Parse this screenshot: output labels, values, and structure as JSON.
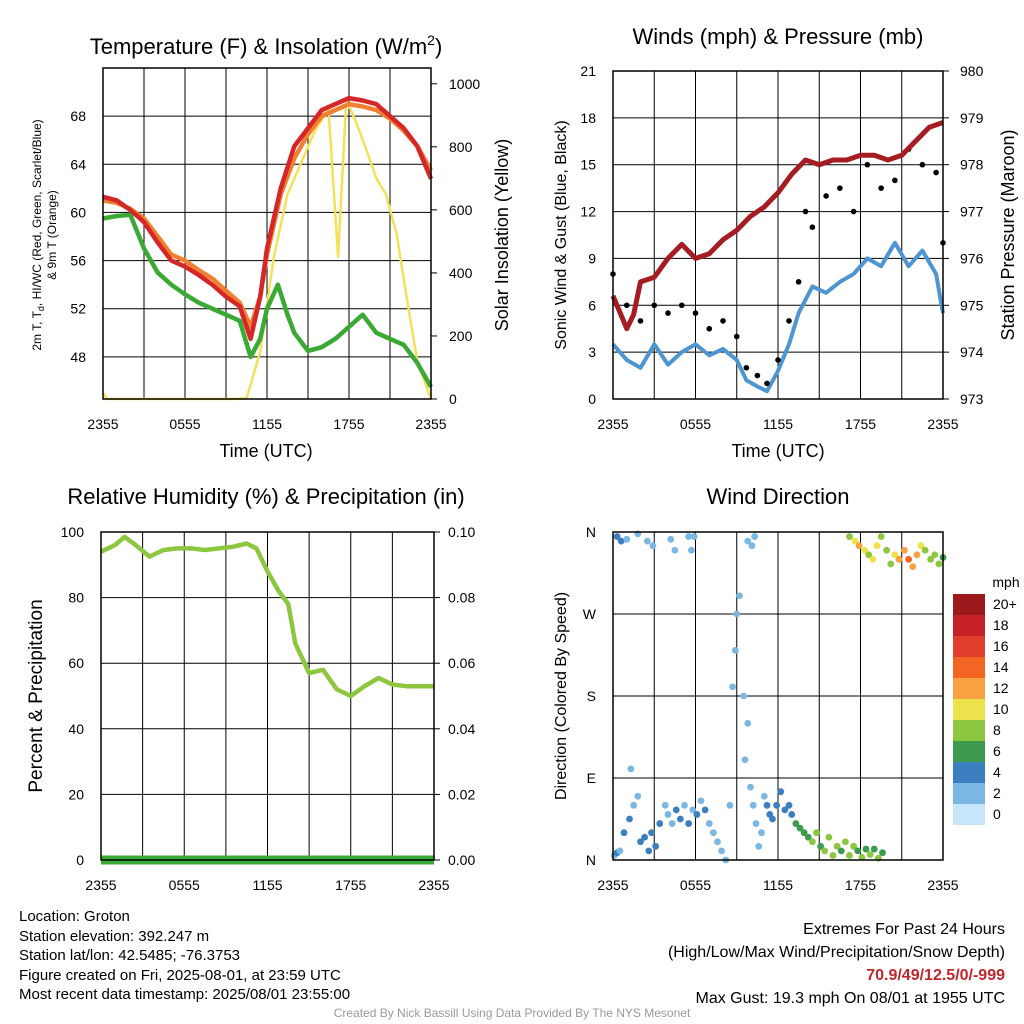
{
  "chart_data": [
    {
      "type": "line",
      "title": "Temperature (F) & Insolation (W/m²)",
      "title_main": "Temperature (F) & Insolation (W/m",
      "title_sup": "2",
      "title_end": ")",
      "xlabel": "Time (UTC)",
      "ylabel_left_1": "2m T, T",
      "ylabel_left_sub": "d",
      "ylabel_left_2": ", HI/WC (Red, Green, Scarlet/Blue)",
      "ylabel_left_3": "& 9m T (Orange)",
      "ylabel_right": "Solar Insolation (Yellow)",
      "xticks": [
        "2355",
        "0555",
        "1155",
        "1755",
        "2355"
      ],
      "xlim": [
        0,
        24
      ],
      "ylim": [
        44.5,
        72
      ],
      "yticks": [
        48,
        52,
        56,
        60,
        64,
        68
      ],
      "y2lim": [
        0,
        1050
      ],
      "y2ticks": [
        0,
        200,
        400,
        600,
        800,
        1000
      ],
      "series": [
        {
          "name": "2m T",
          "color": "#d62728",
          "x": [
            0,
            1,
            2,
            3,
            4,
            5,
            6,
            7,
            8,
            9,
            10,
            10.8,
            11.5,
            12,
            13,
            14,
            15,
            16,
            17,
            18,
            19,
            20,
            21,
            22,
            23,
            24
          ],
          "values": [
            61.3,
            61,
            60.2,
            59.2,
            57.5,
            56,
            55.5,
            54.8,
            54,
            53,
            52.2,
            49.5,
            53,
            57,
            62,
            65.5,
            67,
            68.5,
            69,
            69.5,
            69.3,
            69,
            68,
            67,
            65.5,
            62.8
          ]
        },
        {
          "name": "9m T",
          "color": "#f07f30",
          "x": [
            0,
            1,
            2,
            3,
            4,
            5,
            6,
            7,
            8,
            9,
            10,
            10.8,
            11.5,
            12,
            13,
            14,
            15,
            16,
            17,
            18,
            19,
            20,
            21,
            22,
            23,
            24
          ],
          "values": [
            61,
            60.8,
            60.3,
            59.5,
            58,
            56.5,
            56,
            55.2,
            54.5,
            53.5,
            52.5,
            50.5,
            53,
            56.5,
            61.5,
            64.5,
            66.5,
            68,
            68.5,
            69,
            68.8,
            68.5,
            67.8,
            66.8,
            65.5,
            63.5
          ]
        },
        {
          "name": "Td",
          "color": "#3aaa35",
          "x": [
            0,
            1,
            2,
            3,
            4,
            5,
            6,
            7,
            8,
            9,
            10,
            10.8,
            11.5,
            12,
            12.8,
            13.5,
            14,
            15,
            16,
            17,
            18,
            19,
            20,
            21,
            22,
            23,
            24
          ],
          "values": [
            59.5,
            59.7,
            59.8,
            57,
            55,
            54,
            53.2,
            52.5,
            52,
            51.5,
            51,
            48,
            49.5,
            52,
            54,
            51.5,
            50,
            48.5,
            48.8,
            49.5,
            50.5,
            51.5,
            50,
            49.5,
            49,
            47.5,
            45.5
          ]
        },
        {
          "name": "Solar Insolation",
          "color": "#f5e05a",
          "axis": "right",
          "x": [
            0,
            0.3,
            9.5,
            10.5,
            11.5,
            12.5,
            13.5,
            14.5,
            15.5,
            16.5,
            17.2,
            17.8,
            18.5,
            19.2,
            20,
            20.7,
            21.5,
            22.3,
            23,
            24
          ],
          "values": [
            20,
            0,
            0,
            2,
            150,
            450,
            650,
            750,
            850,
            920,
            450,
            950,
            880,
            800,
            700,
            650,
            520,
            300,
            120,
            0
          ]
        }
      ]
    },
    {
      "type": "line",
      "title": "Winds (mph) & Pressure (mb)",
      "xlabel": "Time (UTC)",
      "ylabel": "Sonic Wind & Gust (Blue, Black)",
      "ylabel_right": "Station Pressure (Maroon)",
      "xticks": [
        "2355",
        "0555",
        "1155",
        "1755",
        "2355"
      ],
      "xlim": [
        0,
        24
      ],
      "ylim": [
        0,
        21
      ],
      "yticks": [
        0,
        3,
        6,
        9,
        12,
        15,
        18,
        21
      ],
      "y2lim": [
        973,
        980
      ],
      "y2ticks": [
        973,
        974,
        975,
        976,
        977,
        978,
        979,
        980
      ],
      "series": [
        {
          "name": "Sonic Wind",
          "color": "#4e95d1",
          "x": [
            0,
            1,
            2,
            3,
            4,
            5,
            6,
            7,
            8,
            9,
            9.7,
            10.5,
            11.2,
            12,
            12.8,
            13.5,
            14.5,
            15.5,
            16.5,
            17.5,
            18.5,
            19.5,
            20.5,
            21.5,
            22.5,
            23.5,
            24
          ],
          "values": [
            3.5,
            2.5,
            2,
            3.5,
            2.2,
            3,
            3.5,
            2.8,
            3.2,
            2.5,
            1.2,
            0.8,
            0.5,
            1.8,
            3.5,
            5.5,
            7.2,
            6.8,
            7.5,
            8,
            9,
            8.5,
            10,
            8.5,
            9.5,
            8,
            5.5
          ]
        },
        {
          "name": "Gust",
          "color": "#000000",
          "type": "scatter",
          "x": [
            0,
            1,
            2,
            3,
            4,
            5,
            6,
            7,
            8,
            9,
            9.7,
            10.5,
            11.2,
            12,
            12.8,
            13.5,
            14,
            14.5,
            15.5,
            16.5,
            17.5,
            18.5,
            19.5,
            20.5,
            21.5,
            22.5,
            23.5,
            24
          ],
          "values": [
            8,
            6,
            5,
            6,
            5.5,
            6,
            5.5,
            4.5,
            5,
            4,
            2,
            1.5,
            1,
            2.5,
            5,
            7.5,
            12,
            11,
            13,
            13.5,
            12,
            15,
            13.5,
            14,
            16,
            15,
            14.5,
            10
          ]
        },
        {
          "name": "Station Pressure",
          "color": "#a51d22",
          "axis": "right",
          "x": [
            0,
            1,
            1.5,
            2,
            3,
            4,
            5,
            6,
            7,
            8,
            9,
            10,
            11,
            12,
            13,
            14,
            15,
            16,
            17,
            18,
            19,
            20,
            21,
            22,
            23,
            24
          ],
          "values": [
            975.2,
            974.5,
            974.8,
            975.5,
            975.6,
            976,
            976.3,
            976,
            976.1,
            976.4,
            976.6,
            976.9,
            977.1,
            977.4,
            977.8,
            978.1,
            978,
            978.1,
            978.1,
            978.2,
            978.2,
            978.1,
            978.2,
            978.5,
            978.8,
            978.9
          ]
        }
      ]
    },
    {
      "type": "line",
      "title": "Relative Humidity (%) & Precipitation (in)",
      "ylabel": "Percent & Precipitation",
      "xticks": [
        "2355",
        "0555",
        "1155",
        "1755",
        "2355"
      ],
      "xlim": [
        0,
        24
      ],
      "ylim": [
        0,
        100
      ],
      "yticks": [
        0,
        20,
        40,
        60,
        80,
        100
      ],
      "y2lim": [
        0,
        0.1
      ],
      "y2ticks": [
        "0.00",
        "0.02",
        "0.04",
        "0.06",
        "0.08",
        "0.10"
      ],
      "series": [
        {
          "name": "Relative Humidity",
          "color": "#8dc63f",
          "x": [
            0,
            1,
            1.7,
            2.5,
            3.5,
            4.5,
            5.5,
            6.5,
            7.5,
            8.5,
            9.5,
            10.5,
            11.2,
            12,
            12.8,
            13.5,
            14,
            15,
            16,
            17,
            18,
            19,
            20,
            21,
            22,
            23,
            24
          ],
          "values": [
            94,
            96,
            98.5,
            96,
            92.5,
            94.5,
            95,
            95,
            94.5,
            95,
            95.5,
            96.5,
            95,
            88,
            82,
            78,
            66,
            57,
            58,
            52,
            50,
            53,
            55.5,
            53.5,
            53,
            53,
            53
          ]
        },
        {
          "name": "Precipitation",
          "color": "#3aaa35",
          "axis": "right",
          "x": [
            0,
            24
          ],
          "values": [
            0,
            0
          ]
        }
      ]
    },
    {
      "type": "scatter",
      "title": "Wind Direction",
      "ylabel": "Direction (Colored By Speed)",
      "xticks": [
        "2355",
        "0555",
        "1155",
        "1755",
        "2355"
      ],
      "xlim": [
        0,
        24
      ],
      "yticks": [
        "N",
        "E",
        "S",
        "W",
        "N"
      ],
      "ylim": [
        0,
        360
      ],
      "legend_title": "mph",
      "legend": [
        "20+",
        "18",
        "16",
        "14",
        "12",
        "10",
        "8",
        "6",
        "4",
        "2",
        "0"
      ],
      "legend_colors": [
        "#9c1a1c",
        "#c62127",
        "#e13c2c",
        "#f26522",
        "#f9a040",
        "#ece24c",
        "#8dc63f",
        "#3c9b4f",
        "#3b7fc0",
        "#7bb7e3",
        "#c8e6f9"
      ],
      "points": [
        [
          0.1,
          5,
          2.5
        ],
        [
          0.3,
          8,
          3
        ],
        [
          0.5,
          10,
          2.5
        ],
        [
          0.8,
          30,
          3
        ],
        [
          1.2,
          45,
          3.5
        ],
        [
          1.5,
          60,
          2.5
        ],
        [
          1.3,
          100,
          2.5
        ],
        [
          1.8,
          70,
          2
        ],
        [
          2,
          20,
          3.5
        ],
        [
          2.3,
          25,
          3
        ],
        [
          2.6,
          10,
          4
        ],
        [
          2.8,
          30,
          3.5
        ],
        [
          3.1,
          15,
          3.5
        ],
        [
          3.4,
          40,
          3
        ],
        [
          3.8,
          60,
          2.5
        ],
        [
          4,
          50,
          1.5
        ],
        [
          4.3,
          40,
          2
        ],
        [
          4.6,
          55,
          3
        ],
        [
          4.9,
          45,
          3.5
        ],
        [
          5.2,
          60,
          2.5
        ],
        [
          5.5,
          40,
          3
        ],
        [
          5.8,
          55,
          2
        ],
        [
          6.1,
          50,
          3
        ],
        [
          6.4,
          65,
          2.5
        ],
        [
          6.7,
          55,
          3.5
        ],
        [
          7,
          40,
          2
        ],
        [
          7.3,
          30,
          2
        ],
        [
          7.6,
          20,
          1.5
        ],
        [
          7.9,
          10,
          2
        ],
        [
          8.2,
          0,
          1.5
        ],
        [
          8.5,
          60,
          1
        ],
        [
          8.7,
          190,
          1.5
        ],
        [
          8.9,
          230,
          1.5
        ],
        [
          9,
          270,
          2
        ],
        [
          9.2,
          290,
          2
        ],
        [
          9.5,
          180,
          1
        ],
        [
          9.6,
          110,
          1.5
        ],
        [
          9.8,
          150,
          1
        ],
        [
          10,
          80,
          2
        ],
        [
          10.2,
          60,
          1
        ],
        [
          10.4,
          40,
          2
        ],
        [
          10.6,
          15,
          1.5
        ],
        [
          10.8,
          30,
          2
        ],
        [
          11,
          70,
          2.5
        ],
        [
          11.2,
          60,
          3
        ],
        [
          11.4,
          50,
          3.5
        ],
        [
          11.6,
          45,
          3
        ],
        [
          11.9,
          60,
          3.5
        ],
        [
          12.2,
          75,
          3
        ],
        [
          12.5,
          55,
          3.5
        ],
        [
          12.8,
          60,
          4
        ],
        [
          13,
          50,
          4
        ],
        [
          13.3,
          40,
          5
        ],
        [
          13.6,
          35,
          6
        ],
        [
          13.9,
          30,
          6.5
        ],
        [
          14.2,
          25,
          6
        ],
        [
          14.5,
          20,
          7
        ],
        [
          14.8,
          30,
          7.5
        ],
        [
          15.1,
          15,
          6
        ],
        [
          15.4,
          10,
          7
        ],
        [
          15.7,
          25,
          7.5
        ],
        [
          16,
          5,
          8
        ],
        [
          16.3,
          15,
          7
        ],
        [
          16.6,
          10,
          6
        ],
        [
          16.9,
          20,
          7
        ],
        [
          17.2,
          5,
          8
        ],
        [
          17.5,
          15,
          7.5
        ],
        [
          17.8,
          10,
          6.5
        ],
        [
          18.1,
          3,
          7
        ],
        [
          18.4,
          12,
          6
        ],
        [
          18.7,
          6,
          7.5
        ],
        [
          19,
          12,
          6.5
        ],
        [
          19.3,
          2,
          7
        ],
        [
          19.6,
          8,
          6
        ],
        [
          0.3,
          355,
          3
        ],
        [
          0.6,
          350,
          3.5
        ],
        [
          1,
          352,
          2
        ],
        [
          1.8,
          358,
          1.5
        ],
        [
          2.5,
          350,
          1.5
        ],
        [
          2.9,
          345,
          1.5
        ],
        [
          4.2,
          352,
          1
        ],
        [
          4.5,
          340,
          1.5
        ],
        [
          5.5,
          355,
          1
        ],
        [
          5.7,
          340,
          1
        ],
        [
          5.9,
          355,
          1
        ],
        [
          9.8,
          350,
          1
        ],
        [
          10.1,
          345,
          1
        ],
        [
          10.3,
          355,
          1
        ],
        [
          17.2,
          355,
          7
        ],
        [
          17.6,
          350,
          10
        ],
        [
          17.9,
          345,
          11
        ],
        [
          18.3,
          340,
          9
        ],
        [
          18.6,
          335,
          8
        ],
        [
          18.9,
          330,
          10
        ],
        [
          19.2,
          345,
          9
        ],
        [
          19.5,
          355,
          8
        ],
        [
          19.9,
          340,
          7
        ],
        [
          20.2,
          325,
          8
        ],
        [
          20.5,
          335,
          9
        ],
        [
          20.8,
          330,
          11
        ],
        [
          21.2,
          340,
          12
        ],
        [
          21.5,
          330,
          13
        ],
        [
          21.8,
          322,
          11
        ],
        [
          22.1,
          335,
          12
        ],
        [
          22.4,
          345,
          10
        ],
        [
          22.7,
          340,
          8
        ],
        [
          23.1,
          330,
          7
        ],
        [
          23.4,
          335,
          8
        ],
        [
          23.7,
          325,
          7
        ],
        [
          24,
          332,
          6
        ]
      ]
    }
  ],
  "info": {
    "location": "Location: Groton",
    "elevation": "Station elevation: 392.247 m",
    "latlon": "Station lat/lon: 42.5485; -76.3753",
    "created": "Figure created on Fri, 2025-08-01, at 23:59 UTC",
    "recent": "Most recent data timestamp: 2025/08/01 23:55:00"
  },
  "extremes": {
    "heading": "Extremes For Past 24 Hours",
    "subheading": "(High/Low/Max Wind/Precipitation/Snow Depth)",
    "values": "70.9/49/12.5/0/-999",
    "max_gust": "Max Gust: 19.3 mph On 08/01 at 1955 UTC"
  },
  "credit": "Created By Nick Bassill Using Data Provided By The NYS Mesonet"
}
